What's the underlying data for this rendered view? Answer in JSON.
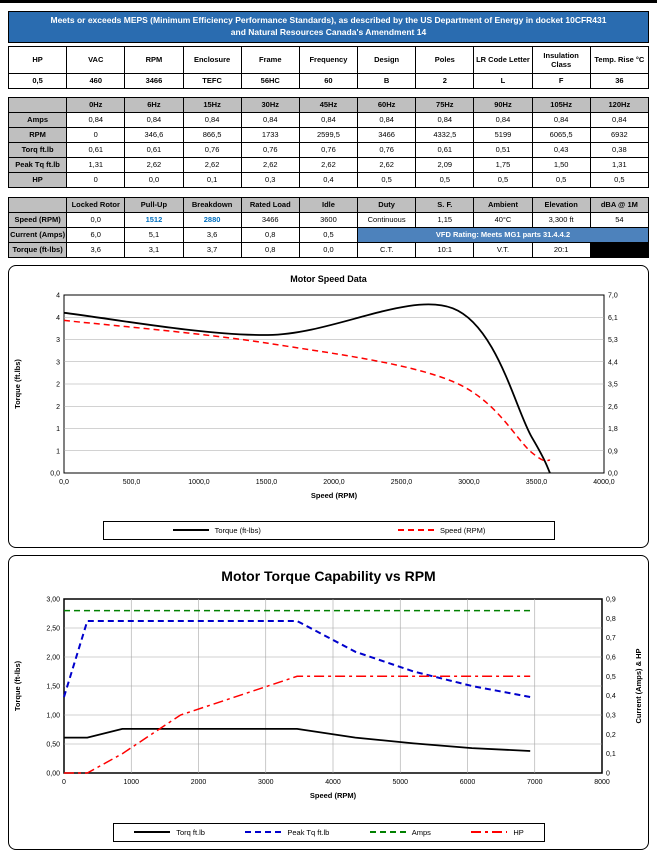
{
  "banner": {
    "text": "Meets or exceeds MEPS (Minimum Efficiency Performance Standards), as described by the US Department of Energy in docket 10CFR431 and Natural Resources Canada's Amendment 14"
  },
  "spec_table": {
    "headers": [
      "HP",
      "VAC",
      "RPM",
      "Enclosure",
      "Frame",
      "Frequency",
      "Design",
      "Poles",
      "LR Code Letter",
      "Insulation Class",
      "Temp. Rise °C"
    ],
    "values": [
      "0,5",
      "460",
      "3466",
      "TEFC",
      "56HC",
      "60",
      "B",
      "2",
      "L",
      "F",
      "36"
    ]
  },
  "freq_table": {
    "corner": "",
    "headers": [
      "0Hz",
      "6Hz",
      "15Hz",
      "30Hz",
      "45Hz",
      "60Hz",
      "75Hz",
      "90Hz",
      "105Hz",
      "120Hz"
    ],
    "rows": [
      {
        "label": "Amps",
        "values": [
          "0,84",
          "0,84",
          "0,84",
          "0,84",
          "0,84",
          "0,84",
          "0,84",
          "0,84",
          "0,84",
          "0,84"
        ]
      },
      {
        "label": "RPM",
        "values": [
          "0",
          "346,6",
          "866,5",
          "1733",
          "2599,5",
          "3466",
          "4332,5",
          "5199",
          "6065,5",
          "6932"
        ]
      },
      {
        "label": "Torq ft.lb",
        "values": [
          "0,61",
          "0,61",
          "0,76",
          "0,76",
          "0,76",
          "0,76",
          "0,61",
          "0,51",
          "0,43",
          "0,38"
        ]
      },
      {
        "label": "Peak Tq ft.lb",
        "values": [
          "1,31",
          "2,62",
          "2,62",
          "2,62",
          "2,62",
          "2,62",
          "2,09",
          "1,75",
          "1,50",
          "1,31"
        ]
      },
      {
        "label": "HP",
        "values": [
          "0",
          "0,0",
          "0,1",
          "0,3",
          "0,4",
          "0,5",
          "0,5",
          "0,5",
          "0,5",
          "0,5"
        ]
      }
    ]
  },
  "perf_table": {
    "corner": "",
    "headers": [
      "Locked Rotor",
      "Pull-Up",
      "Breakdown",
      "Rated Load",
      "Idle",
      "Duty",
      "S. F.",
      "Ambient",
      "Elevation",
      "dBA @ 1M"
    ],
    "rows": [
      {
        "label": "Speed (RPM)",
        "values": [
          "0,0",
          "1512",
          "2880",
          "3466",
          "3600",
          "Continuous",
          "1,15",
          "40°C",
          "3,300 ft",
          "54"
        ],
        "blue_indices": [
          1,
          2
        ]
      },
      {
        "label": "Current (Amps)",
        "values": [
          "6,0",
          "5,1",
          "3,6",
          "0,8",
          "0,5"
        ],
        "banner": "VFD Rating: Meets MG1 parts 31.4.4.2"
      },
      {
        "label": "Torque (ft-lbs)",
        "values": [
          "3,6",
          "3,1",
          "3,7",
          "0,8",
          "0,0",
          "C.T.",
          "10:1",
          "V.T.",
          "20:1"
        ],
        "black_last": true
      }
    ]
  },
  "colors": {
    "banner_blue": "#2A6CB0",
    "vfd_blue": "#4D82BC",
    "header_gray": "#BFBFBF",
    "link_blue": "#0070C0",
    "torque_black": "#000000",
    "speed_red": "#FF0000",
    "peak_blue": "#0000CC",
    "amps_green": "#008000",
    "hp_red": "#FF0000"
  },
  "chart_data": [
    {
      "type": "line",
      "title": "Motor Speed Data",
      "xlabel": "Speed (RPM)",
      "ylabel_left": "Torque (ft.lbs)",
      "ylabel_right": "",
      "xlim": [
        0,
        4000
      ],
      "ylim_left": [
        0,
        4
      ],
      "ylim_right": [
        0,
        7
      ],
      "x_ticks": [
        "0,0",
        "500,0",
        "1000,0",
        "1500,0",
        "2000,0",
        "2500,0",
        "3000,0",
        "3500,0",
        "4000,0"
      ],
      "y_left_ticks": [
        "0,0",
        "1",
        "1",
        "2",
        "2",
        "3",
        "3",
        "4",
        "4"
      ],
      "y_right_ticks": [
        "0,0",
        "0,9",
        "1,8",
        "2,6",
        "3,5",
        "4,4",
        "5,3",
        "6,1",
        "7,0"
      ],
      "vgrid": false,
      "legend_position": "bottom",
      "series": [
        {
          "name": "Torque (ft-lbs)",
          "axis": "left",
          "color": "#000000",
          "style": "solid",
          "width": 1.8,
          "smooth": true,
          "x": [
            0,
            1512,
            2880,
            3466,
            3600
          ],
          "y": [
            3.6,
            3.1,
            3.7,
            0.8,
            0.0
          ]
        },
        {
          "name": "Speed (RPM)",
          "axis": "right",
          "color": "#FF0000",
          "style": "dashed",
          "width": 1.5,
          "smooth": true,
          "x": [
            0,
            1512,
            2880,
            3466,
            3600
          ],
          "y": [
            6.0,
            5.1,
            3.6,
            0.8,
            0.5
          ]
        }
      ]
    },
    {
      "type": "line",
      "title": "Motor Torque Capability vs RPM",
      "xlabel": "Speed (RPM)",
      "ylabel_left": "Torque (ft-lbs)",
      "ylabel_right": "Current (Amps) & HP",
      "xlim": [
        0,
        8000
      ],
      "ylim_left": [
        0,
        3
      ],
      "ylim_right": [
        0,
        0.9
      ],
      "x_ticks": [
        "0",
        "1000",
        "2000",
        "3000",
        "4000",
        "5000",
        "6000",
        "7000",
        "8000"
      ],
      "y_left_ticks": [
        "0,00",
        "0,50",
        "1,00",
        "1,50",
        "2,00",
        "2,50",
        "3,00"
      ],
      "y_right_ticks": [
        "0",
        "0,1",
        "0,2",
        "0,3",
        "0,4",
        "0,5",
        "0,6",
        "0,7",
        "0,8",
        "0,9"
      ],
      "vgrid": true,
      "legend_position": "bottom",
      "x": [
        0,
        346.6,
        866.5,
        1733,
        2599.5,
        3466,
        4332.5,
        5199,
        6065.5,
        6932
      ],
      "series": [
        {
          "name": "Torq ft.lb",
          "axis": "left",
          "color": "#000000",
          "style": "solid",
          "width": 1.8,
          "smooth": false,
          "y": [
            0.61,
            0.61,
            0.76,
            0.76,
            0.76,
            0.76,
            0.61,
            0.51,
            0.43,
            0.38
          ]
        },
        {
          "name": "Peak Tq ft.lb",
          "axis": "left",
          "color": "#0000CC",
          "style": "dashed",
          "width": 2,
          "smooth": false,
          "y": [
            1.31,
            2.62,
            2.62,
            2.62,
            2.62,
            2.62,
            2.09,
            1.75,
            1.5,
            1.31
          ]
        },
        {
          "name": "Amps",
          "axis": "right",
          "color": "#008000",
          "style": "dashed",
          "width": 1.5,
          "smooth": false,
          "y": [
            0.84,
            0.84,
            0.84,
            0.84,
            0.84,
            0.84,
            0.84,
            0.84,
            0.84,
            0.84
          ]
        },
        {
          "name": "HP",
          "axis": "right",
          "color": "#FF0000",
          "style": "dashdot",
          "width": 1.5,
          "smooth": false,
          "y": [
            0,
            0.0,
            0.1,
            0.3,
            0.4,
            0.5,
            0.5,
            0.5,
            0.5,
            0.5
          ]
        }
      ]
    }
  ]
}
